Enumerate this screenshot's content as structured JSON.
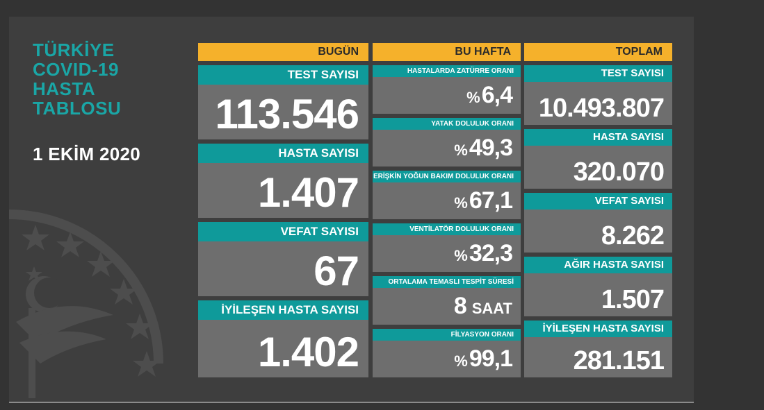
{
  "title": {
    "lines": [
      "TÜRKİYE",
      "COVID-19",
      "HASTA",
      "TABLOSU"
    ],
    "date": "1 EKİM 2020"
  },
  "colors": {
    "accent_teal": "#0f9a9a",
    "header_orange": "#f5b12b",
    "card_gray": "#6e6e6e",
    "background": "#3e3e3e"
  },
  "bugun": {
    "header": "BUGÜN",
    "items": [
      {
        "label": "TEST SAYISI",
        "value": "113.546"
      },
      {
        "label": "HASTA SAYISI",
        "value": "1.407"
      },
      {
        "label": "VEFAT SAYISI",
        "value": "67"
      },
      {
        "label": "İYİLEŞEN HASTA SAYISI",
        "value": "1.402"
      }
    ]
  },
  "bu_hafta": {
    "header": "BU HAFTA",
    "items": [
      {
        "label": "HASTALARDA ZATÜRRE ORANI",
        "prefix": "%",
        "value": "6,4"
      },
      {
        "label": "YATAK DOLULUK ORANI",
        "prefix": "%",
        "value": "49,3"
      },
      {
        "label": "ERİŞKİN YOĞUN BAKIM DOLULUK ORANI",
        "prefix": "%",
        "value": "67,1"
      },
      {
        "label": "VENTİLATÖR DOLULUK ORANI",
        "prefix": "%",
        "value": "32,3"
      },
      {
        "label": "ORTALAMA TEMASLI TESPİT SÜRESİ",
        "value": "8",
        "unit": "SAAT"
      },
      {
        "label": "FİLYASYON ORANI",
        "prefix": "%",
        "value": "99,1"
      }
    ]
  },
  "toplam": {
    "header": "TOPLAM",
    "items": [
      {
        "label": "TEST SAYISI",
        "value": "10.493.807"
      },
      {
        "label": "HASTA SAYISI",
        "value": "320.070"
      },
      {
        "label": "VEFAT SAYISI",
        "value": "8.262"
      },
      {
        "label": "AĞIR HASTA SAYISI",
        "value": "1.507"
      },
      {
        "label": "İYİLEŞEN HASTA SAYISI",
        "value": "281.151"
      }
    ]
  }
}
